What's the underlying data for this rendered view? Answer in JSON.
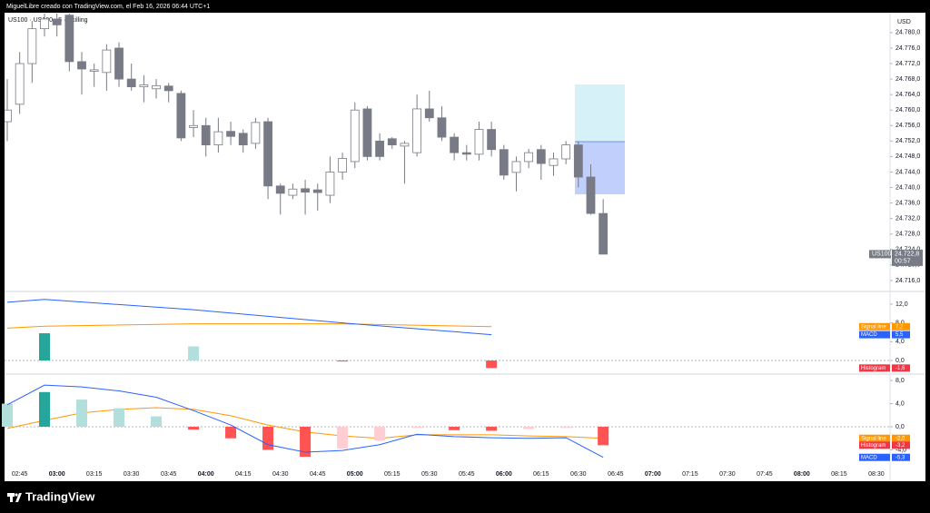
{
  "header": {
    "caption": "MiguelLibre creado con TradingView.com, el Feb 16, 2026 06:44 UTC+1",
    "symbol": "US100 · US100 · 5 · Skilling",
    "currency": "USD"
  },
  "footer": {
    "brand": "TradingView"
  },
  "chart_data": [
    {
      "type": "candlestick",
      "up_color": "#ffffff",
      "down_color": "#787b86",
      "border_color": "#787b86",
      "x": [
        "02:40",
        "02:45",
        "02:50",
        "02:55",
        "03:00",
        "03:05",
        "03:10",
        "03:15",
        "03:20",
        "03:25",
        "03:30",
        "03:35",
        "03:40",
        "03:45",
        "03:50",
        "03:55",
        "04:00",
        "04:05",
        "04:10",
        "04:15",
        "04:20",
        "04:25",
        "04:30",
        "04:35",
        "04:40",
        "04:45",
        "04:50",
        "04:55",
        "05:00",
        "05:05",
        "05:10",
        "05:15",
        "05:20",
        "05:25",
        "05:30",
        "05:35",
        "05:40",
        "05:45",
        "05:50",
        "05:55",
        "06:00",
        "06:05",
        "06:10",
        "06:15",
        "06:20",
        "06:25",
        "06:30",
        "06:35",
        "06:40"
      ],
      "open": [
        24757,
        24761.5,
        24772,
        24781,
        24783.5,
        24784.5,
        24772.5,
        24770,
        24769.7,
        24776,
        24768,
        24766,
        24765.5,
        24766.2,
        24764.3,
        24755.5,
        24756,
        24751,
        24754.5,
        24754,
        24751.4,
        24757,
        24740.4,
        24738,
        24739.7,
        24739.4,
        24738,
        24744,
        24746.7,
        24760.3,
        24752,
        24752.6,
        24750.7,
        24749,
        24760.3,
        24758,
        24753,
        24749,
        24748.6,
        24755,
        24749.8,
        24743.9,
        24746.7,
        24749.8,
        24745.7,
        24747.4,
        24751,
        24742.7,
        24733.3
      ],
      "high": [
        24768,
        24775,
        24783,
        24785,
        24785,
        24785,
        24775,
        24772,
        24777,
        24777.5,
        24772,
        24769,
        24768,
        24767,
        24765,
        24760,
        24758,
        24758,
        24757,
        24755,
        24758,
        24758,
        24741,
        24741,
        24742,
        24741,
        24748,
        24749,
        24762,
        24761,
        24754,
        24753,
        24752,
        24764,
        24765,
        24761,
        24754,
        24751,
        24757,
        24757,
        24751,
        24748,
        24750,
        24751,
        24749,
        24752,
        24752,
        24746,
        24737
      ],
      "low": [
        24752,
        24759,
        24767,
        24779,
        24779,
        24770,
        24764,
        24766,
        24765,
        24766,
        24765,
        24762,
        24763,
        24762,
        24752,
        24753,
        24748,
        24749,
        24751,
        24749,
        24750,
        24737,
        24733,
        24737,
        24733,
        24734,
        24736,
        24742,
        24745,
        24747,
        24747,
        24750,
        24741,
        24748,
        24757,
        24752,
        24747,
        24747,
        24747,
        24748,
        24742,
        24739,
        24745,
        24742,
        24743,
        24746,
        24740,
        24733,
        24722.8
      ],
      "close": [
        24760,
        24772,
        24781,
        24783.5,
        24782,
        24772.5,
        24770.6,
        24770.4,
        24775.5,
        24768,
        24766,
        24766.5,
        24766.3,
        24765,
        24752.8,
        24756,
        24751,
        24754.4,
        24753.2,
        24751,
        24756.8,
        24740.4,
        24738.5,
        24739.6,
        24738.8,
        24738.7,
        24744,
        24747.5,
        24760,
        24748,
        24748,
        24751,
        24751.4,
        24760.3,
        24758,
        24753,
        24749,
        24748.6,
        24755,
        24749.8,
        24743.2,
        24746.7,
        24749,
        24746.2,
        24747.4,
        24751,
        24742.7,
        24733.3,
        24722.8
      ],
      "ylim": [
        24713.4,
        24784.9
      ],
      "yticks": [
        {
          "value": 24716,
          "label": "24.716,0"
        },
        {
          "value": 24720,
          "label": "24.720,0"
        },
        {
          "value": 24724,
          "label": "24.724,0"
        },
        {
          "value": 24728,
          "label": "24.728,0"
        },
        {
          "value": 24732,
          "label": "24.732,0"
        },
        {
          "value": 24736,
          "label": "24.736,0"
        },
        {
          "value": 24740,
          "label": "24.740,0"
        },
        {
          "value": 24744,
          "label": "24.744,0"
        },
        {
          "value": 24748,
          "label": "24.748,0"
        },
        {
          "value": 24752,
          "label": "24.752,0"
        },
        {
          "value": 24756,
          "label": "24.756,0"
        },
        {
          "value": 24760,
          "label": "24.760,0"
        },
        {
          "value": 24764,
          "label": "24.764,0"
        },
        {
          "value": 24768,
          "label": "24.768,0"
        },
        {
          "value": 24772,
          "label": "24.772,0"
        },
        {
          "value": 24776,
          "label": "24.776,0"
        },
        {
          "value": 24780,
          "label": "24.780,0"
        }
      ],
      "xticks": [
        "02:45",
        "03:00",
        "03:15",
        "03:30",
        "03:45",
        "04:00",
        "04:15",
        "04:30",
        "04:45",
        "05:00",
        "05:15",
        "05:30",
        "05:45",
        "06:00",
        "06:15",
        "06:30",
        "06:45",
        "07:00",
        "07:15",
        "07:30",
        "07:45",
        "08:00",
        "08:15",
        "08:30"
      ],
      "last_price": {
        "symbol": "US100",
        "value": 24722.8,
        "label": "24.722,8",
        "countdown": "00:57"
      }
    },
    {
      "type": "macd",
      "ylim": [
        -2.5,
        14.5
      ],
      "yticks": [
        {
          "value": 0,
          "label": "0,0"
        },
        {
          "value": 4,
          "label": "4,0"
        },
        {
          "value": 8,
          "label": "8,0"
        },
        {
          "value": 12,
          "label": "12,0"
        }
      ],
      "x": [
        "02:40",
        "02:55",
        "03:55",
        "04:55",
        "05:55"
      ],
      "series": [
        {
          "name": "Signal line",
          "kind": "line",
          "color": "#ff9800",
          "values": [
            6.9,
            7.3,
            7.8,
            7.8,
            7.2
          ],
          "last_value": 7.2,
          "last_value_label": "7,2"
        },
        {
          "name": "MACD",
          "kind": "line",
          "color": "#2962ff",
          "values": [
            12.4,
            13.0,
            10.8,
            8.0,
            5.5
          ],
          "last_value": 5.5,
          "last_value_label": "5,5"
        },
        {
          "name": "Histogram",
          "kind": "histogram",
          "color": "#f23645",
          "values": [
            null,
            5.8,
            3.0,
            -0.2,
            -1.6
          ],
          "colors": [
            "#26a69a",
            "#26a69a",
            "#b2dfdb",
            "#ff5252",
            "#ff5252"
          ],
          "last_value": -1.6,
          "last_value_label": "-1,6"
        }
      ]
    },
    {
      "type": "macd",
      "ylim": [
        -6.6,
        8.8
      ],
      "yticks": [
        {
          "value": -4,
          "label": "-4,0"
        },
        {
          "value": 0,
          "label": "0,0"
        },
        {
          "value": 4,
          "label": "4,0"
        },
        {
          "value": 8,
          "label": "8,0"
        }
      ],
      "x": [
        "02:40",
        "02:55",
        "03:10",
        "03:25",
        "03:40",
        "03:55",
        "04:10",
        "04:25",
        "04:40",
        "04:55",
        "05:10",
        "05:25",
        "05:40",
        "05:55",
        "06:10",
        "06:25",
        "06:40"
      ],
      "series": [
        {
          "name": "Signal line",
          "kind": "line",
          "color": "#ff9800",
          "values": [
            -0.3,
            1.1,
            2.4,
            3.0,
            3.3,
            3.0,
            1.9,
            0.3,
            -0.9,
            -1.6,
            -2.0,
            -1.4,
            -1.4,
            -1.4,
            -1.6,
            -1.7,
            -2.0
          ],
          "last_value": -2.0,
          "last_value_label": "-2,0"
        },
        {
          "name": "Histogram",
          "kind": "histogram",
          "color": "#f23645",
          "values": [
            4.0,
            6.0,
            4.7,
            3.2,
            1.8,
            -0.5,
            -2.0,
            -4.0,
            -5.2,
            -3.8,
            -2.4,
            -0.2,
            -0.6,
            -0.7,
            -0.4,
            -0.2,
            -3.2
          ],
          "colors": [
            "#b2dfdb",
            "#26a69a",
            "#b2dfdb",
            "#b2dfdb",
            "#b2dfdb",
            "#ff5252",
            "#ff5252",
            "#ff5252",
            "#ff5252",
            "#ffcdd2",
            "#ffcdd2",
            "#ffcdd2",
            "#ff5252",
            "#ff5252",
            "#ffcdd2",
            "#ffcdd2",
            "#ff5252"
          ],
          "last_value": -3.2,
          "last_value_label": "-3,2"
        },
        {
          "name": "MACD",
          "kind": "line",
          "color": "#2962ff",
          "values": [
            3.8,
            7.2,
            6.9,
            6.2,
            5.1,
            2.8,
            0.3,
            -3.1,
            -4.4,
            -4.1,
            -3.1,
            -1.3,
            -1.7,
            -1.9,
            -2.0,
            -1.9,
            -5.3
          ],
          "last_value": -5.3,
          "last_value_label": "-5,3"
        }
      ]
    }
  ]
}
